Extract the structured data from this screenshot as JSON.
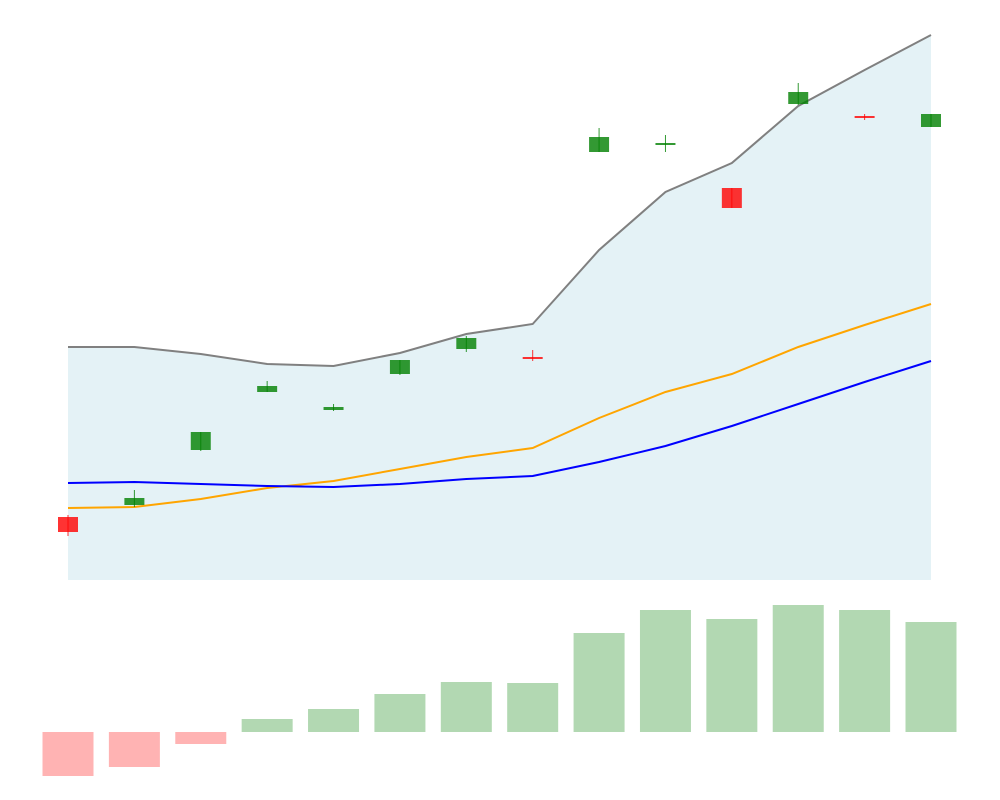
{
  "chart_data": [
    {
      "type": "candlestick",
      "open": [
        12.6,
        15,
        26,
        37.6,
        34,
        41.2,
        46.2,
        44.6,
        85.6,
        87,
        78.4,
        95.2,
        92.8,
        90.6
      ],
      "high": [
        13,
        18,
        29.6,
        39.8,
        35.2,
        44,
        48.8,
        46,
        90.4,
        89,
        78.4,
        99.4,
        93.2,
        93.2
      ],
      "low": [
        8.8,
        14.6,
        25.8,
        37.6,
        33.8,
        41,
        45.6,
        43.8,
        85.6,
        85.6,
        74.4,
        95,
        92,
        90.6
      ],
      "close": [
        9.6,
        16.4,
        29.6,
        38.8,
        34.6,
        44,
        48.4,
        44.2,
        88.6,
        87.4,
        74.4,
        97.6,
        92.4,
        93.2
      ],
      "up_color": "green",
      "down_color": "red",
      "area_color": "#e4f2f6",
      "lines": [
        {
          "color": "gray",
          "values": [
            46.6,
            46.6,
            45.2,
            43.2,
            42.8,
            45.4,
            49.2,
            51.2,
            66,
            77.6,
            83.4,
            94.8,
            102,
            109
          ],
          "fill": true
        },
        {
          "color": "orange",
          "values": [
            14.4,
            14.6,
            16.2,
            18.4,
            19.8,
            22.2,
            24.6,
            26.4,
            32.4,
            37.6,
            41.2,
            46.6,
            51,
            55.2
          ]
        },
        {
          "color": "blue",
          "values": [
            19.4,
            19.6,
            19.2,
            18.8,
            18.6,
            19.2,
            20.2,
            20.8,
            23.6,
            26.8,
            30.8,
            35.2,
            39.6,
            43.8
          ]
        }
      ],
      "ylim": [
        0,
        110
      ]
    },
    {
      "type": "bar",
      "values": [
        -44,
        -35,
        -12,
        13,
        23,
        38,
        50,
        49,
        99,
        122,
        113,
        127,
        122,
        110
      ],
      "up_color": "#b2d8b2",
      "down_color": "#ffb3b3",
      "ylim": [
        -48,
        132
      ]
    }
  ]
}
